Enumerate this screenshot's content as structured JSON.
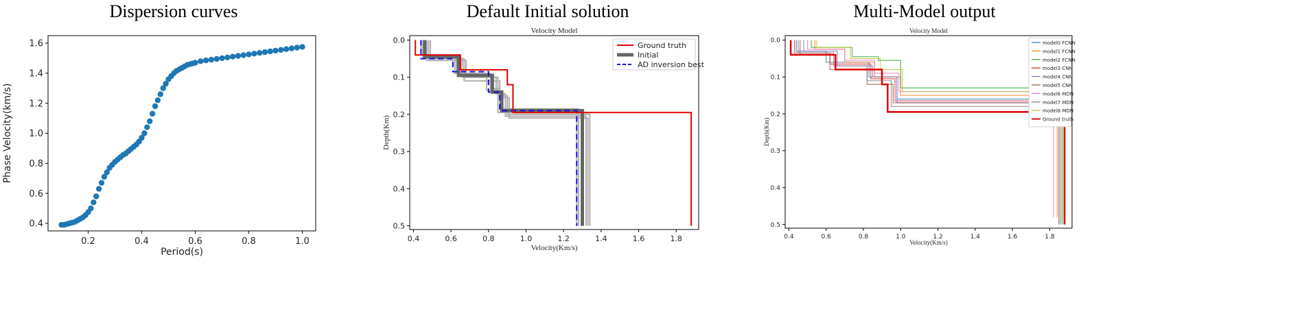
{
  "panel_titles": [
    "Dispersion curves",
    "Default Initial solution",
    "Multi-Model output"
  ],
  "colors": {
    "scatter": "#1f77b4",
    "truth": "#e00000",
    "initial": "#666666",
    "ad": "#1010dd",
    "gray": "#b0b0b0"
  },
  "chart_data": [
    {
      "type": "scatter",
      "title": "",
      "xlabel": "Period(s)",
      "ylabel": "Phase Velocity(km/s)",
      "xlim": [
        0.05,
        1.05
      ],
      "ylim": [
        0.35,
        1.65
      ],
      "xticks": [
        "0.2",
        "0.4",
        "0.6",
        "0.8",
        "1.0"
      ],
      "yticks": [
        "0.4",
        "0.6",
        "0.8",
        "1.0",
        "1.2",
        "1.4",
        "1.6"
      ],
      "x": [
        0.1,
        0.11,
        0.12,
        0.13,
        0.14,
        0.15,
        0.16,
        0.17,
        0.18,
        0.19,
        0.2,
        0.21,
        0.22,
        0.23,
        0.24,
        0.25,
        0.26,
        0.27,
        0.28,
        0.29,
        0.3,
        0.31,
        0.32,
        0.33,
        0.34,
        0.35,
        0.36,
        0.37,
        0.38,
        0.39,
        0.4,
        0.41,
        0.42,
        0.43,
        0.44,
        0.45,
        0.46,
        0.47,
        0.48,
        0.49,
        0.5,
        0.51,
        0.52,
        0.53,
        0.54,
        0.55,
        0.56,
        0.57,
        0.58,
        0.59,
        0.6,
        0.62,
        0.64,
        0.66,
        0.68,
        0.7,
        0.72,
        0.74,
        0.76,
        0.78,
        0.8,
        0.82,
        0.84,
        0.86,
        0.88,
        0.9,
        0.92,
        0.94,
        0.96,
        0.98,
        1.0
      ],
      "y": [
        0.39,
        0.39,
        0.395,
        0.4,
        0.405,
        0.41,
        0.42,
        0.43,
        0.44,
        0.455,
        0.475,
        0.5,
        0.54,
        0.58,
        0.63,
        0.67,
        0.71,
        0.74,
        0.77,
        0.79,
        0.81,
        0.825,
        0.84,
        0.855,
        0.865,
        0.88,
        0.895,
        0.91,
        0.925,
        0.945,
        0.97,
        1.0,
        1.04,
        1.08,
        1.13,
        1.18,
        1.22,
        1.26,
        1.3,
        1.33,
        1.36,
        1.38,
        1.4,
        1.415,
        1.425,
        1.435,
        1.445,
        1.455,
        1.46,
        1.465,
        1.47,
        1.48,
        1.485,
        1.49,
        1.495,
        1.5,
        1.505,
        1.51,
        1.515,
        1.52,
        1.525,
        1.53,
        1.535,
        1.54,
        1.545,
        1.55,
        1.555,
        1.56,
        1.565,
        1.57,
        1.575
      ]
    },
    {
      "type": "line",
      "title": "Velocity Model",
      "xlabel": "Velocity(Km/s)",
      "ylabel": "Depth(Km)",
      "xlim": [
        0.38,
        1.92
      ],
      "ylim": [
        0.51,
        -0.012
      ],
      "xticks": [
        "0.4",
        "0.6",
        "0.8",
        "1.0",
        "1.2",
        "1.4",
        "1.6",
        "1.8"
      ],
      "yticks": [
        "0.0",
        "0.1",
        "0.2",
        "0.3",
        "0.4",
        "0.5"
      ],
      "legend": [
        "Ground truth",
        "Initial",
        "AD inversion best"
      ],
      "legend_position": "top-right",
      "series": [
        {
          "name": "Ground truth",
          "color": "#e00000",
          "width": 2,
          "v": [
            0.41,
            0.41,
            0.65,
            0.65,
            0.9,
            0.9,
            0.93,
            0.93,
            1.88,
            1.88
          ],
          "d": [
            0.0,
            0.04,
            0.04,
            0.08,
            0.08,
            0.12,
            0.12,
            0.195,
            0.195,
            0.5
          ]
        },
        {
          "name": "Initial",
          "color": "#666666",
          "width": 5,
          "v": [
            0.46,
            0.46,
            0.64,
            0.64,
            0.82,
            0.82,
            0.87,
            0.87,
            1.3,
            1.3
          ],
          "d": [
            0.0,
            0.045,
            0.045,
            0.095,
            0.095,
            0.14,
            0.14,
            0.19,
            0.19,
            0.5
          ]
        },
        {
          "name": "AD inversion best",
          "color": "#1010dd",
          "width": 2,
          "dash": "8 5",
          "v": [
            0.44,
            0.44,
            0.61,
            0.61,
            0.8,
            0.8,
            0.86,
            0.86,
            1.27,
            1.27
          ],
          "d": [
            0.0,
            0.05,
            0.05,
            0.085,
            0.085,
            0.14,
            0.14,
            0.19,
            0.19,
            0.5
          ]
        }
      ],
      "gray_models": [
        {
          "v": [
            0.48,
            0.48,
            0.66,
            0.66,
            0.85,
            0.85,
            0.9,
            0.9,
            1.34,
            1.34
          ],
          "d": [
            0.0,
            0.05,
            0.05,
            0.1,
            0.1,
            0.15,
            0.15,
            0.2,
            0.2,
            0.5
          ]
        },
        {
          "v": [
            0.44,
            0.44,
            0.63,
            0.63,
            0.81,
            0.81,
            0.86,
            0.86,
            1.28,
            1.28
          ],
          "d": [
            0.0,
            0.04,
            0.04,
            0.09,
            0.09,
            0.13,
            0.13,
            0.185,
            0.185,
            0.5
          ]
        },
        {
          "v": [
            0.47,
            0.47,
            0.68,
            0.68,
            0.84,
            0.84,
            0.89,
            0.89,
            1.32,
            1.32
          ],
          "d": [
            0.0,
            0.055,
            0.055,
            0.1,
            0.1,
            0.145,
            0.145,
            0.205,
            0.205,
            0.5
          ]
        },
        {
          "v": [
            0.45,
            0.45,
            0.62,
            0.62,
            0.79,
            0.79,
            0.85,
            0.85,
            1.27,
            1.27
          ],
          "d": [
            0.0,
            0.045,
            0.045,
            0.09,
            0.09,
            0.135,
            0.135,
            0.195,
            0.195,
            0.5
          ]
        },
        {
          "v": [
            0.49,
            0.49,
            0.67,
            0.67,
            0.86,
            0.86,
            0.91,
            0.91,
            1.33,
            1.33
          ],
          "d": [
            0.0,
            0.05,
            0.05,
            0.11,
            0.11,
            0.155,
            0.155,
            0.21,
            0.21,
            0.5
          ]
        }
      ]
    },
    {
      "type": "line",
      "title": "Velocity Model",
      "xlabel": "Velocity(Km/s)",
      "ylabel": "Depth(Km)",
      "xlim": [
        0.38,
        1.92
      ],
      "ylim": [
        0.51,
        -0.012
      ],
      "xticks": [
        "0.4",
        "0.6",
        "0.8",
        "1.0",
        "1.2",
        "1.4",
        "1.6",
        "1.8"
      ],
      "yticks": [
        "0.0",
        "0.1",
        "0.2",
        "0.3",
        "0.4",
        "0.5"
      ],
      "legend_position": "top-right",
      "series": [
        {
          "name": "model0 FCNN",
          "color": "#1f77b4",
          "v": [
            0.44,
            0.44,
            0.6,
            0.6,
            0.83,
            0.83,
            0.98,
            0.98,
            1.86,
            1.86
          ],
          "d": [
            0.0,
            0.03,
            0.03,
            0.06,
            0.06,
            0.1,
            0.1,
            0.16,
            0.16,
            0.5
          ]
        },
        {
          "name": "model1 FCNN",
          "color": "#ff7f0e",
          "v": [
            0.54,
            0.54,
            0.7,
            0.7,
            0.86,
            0.86,
            1.0,
            1.0,
            1.84,
            1.84
          ],
          "d": [
            0.0,
            0.025,
            0.025,
            0.06,
            0.06,
            0.1,
            0.1,
            0.15,
            0.15,
            0.48
          ]
        },
        {
          "name": "model2 FCNN",
          "color": "#2ca02c",
          "v": [
            0.52,
            0.52,
            0.74,
            0.74,
            0.88,
            0.88,
            1.0,
            1.0,
            1.87,
            1.87
          ],
          "d": [
            0.0,
            0.02,
            0.02,
            0.045,
            0.045,
            0.055,
            0.055,
            0.13,
            0.13,
            0.5
          ]
        },
        {
          "name": "model3 CNN",
          "color": "#d62728",
          "v": [
            0.43,
            0.43,
            0.62,
            0.62,
            0.84,
            0.84,
            0.97,
            0.97,
            1.85,
            1.85
          ],
          "d": [
            0.0,
            0.035,
            0.035,
            0.065,
            0.065,
            0.105,
            0.105,
            0.165,
            0.165,
            0.5
          ]
        },
        {
          "name": "model4 CNN",
          "color": "#9467bd",
          "v": [
            0.48,
            0.48,
            0.66,
            0.66,
            0.85,
            0.85,
            0.98,
            0.98,
            1.85,
            1.85
          ],
          "d": [
            0.0,
            0.03,
            0.03,
            0.07,
            0.07,
            0.1,
            0.1,
            0.17,
            0.17,
            0.5
          ]
        },
        {
          "name": "model5 CNN",
          "color": "#8c564b",
          "v": [
            0.46,
            0.46,
            0.62,
            0.62,
            0.82,
            0.82,
            0.96,
            0.96,
            1.86,
            1.86
          ],
          "d": [
            0.0,
            0.04,
            0.04,
            0.08,
            0.08,
            0.12,
            0.12,
            0.17,
            0.17,
            0.49
          ]
        },
        {
          "name": "model6 MDN",
          "color": "#e377c2",
          "v": [
            0.5,
            0.5,
            0.7,
            0.7,
            0.86,
            0.86,
            0.99,
            0.99,
            1.82,
            1.82
          ],
          "d": [
            0.0,
            0.025,
            0.025,
            0.055,
            0.055,
            0.09,
            0.09,
            0.14,
            0.14,
            0.48
          ]
        },
        {
          "name": "model7 MDN",
          "color": "#7f7f7f",
          "v": [
            0.45,
            0.45,
            0.64,
            0.64,
            0.82,
            0.82,
            0.95,
            0.95,
            1.85,
            1.85
          ],
          "d": [
            0.0,
            0.035,
            0.035,
            0.07,
            0.07,
            0.11,
            0.11,
            0.18,
            0.18,
            0.5
          ]
        },
        {
          "name": "model8 MDN",
          "color": "#bcbd22",
          "v": [
            0.55,
            0.55,
            0.73,
            0.73,
            0.89,
            0.89,
            1.01,
            1.01,
            1.86,
            1.86
          ],
          "d": [
            0.0,
            0.02,
            0.02,
            0.05,
            0.05,
            0.08,
            0.08,
            0.14,
            0.14,
            0.49
          ]
        },
        {
          "name": "Ground truth",
          "color": "#e00000",
          "width": 2.5,
          "v": [
            0.41,
            0.41,
            0.65,
            0.65,
            0.9,
            0.9,
            0.93,
            0.93,
            1.88,
            1.88
          ],
          "d": [
            0.0,
            0.04,
            0.04,
            0.08,
            0.08,
            0.12,
            0.12,
            0.195,
            0.195,
            0.5
          ]
        }
      ]
    }
  ]
}
